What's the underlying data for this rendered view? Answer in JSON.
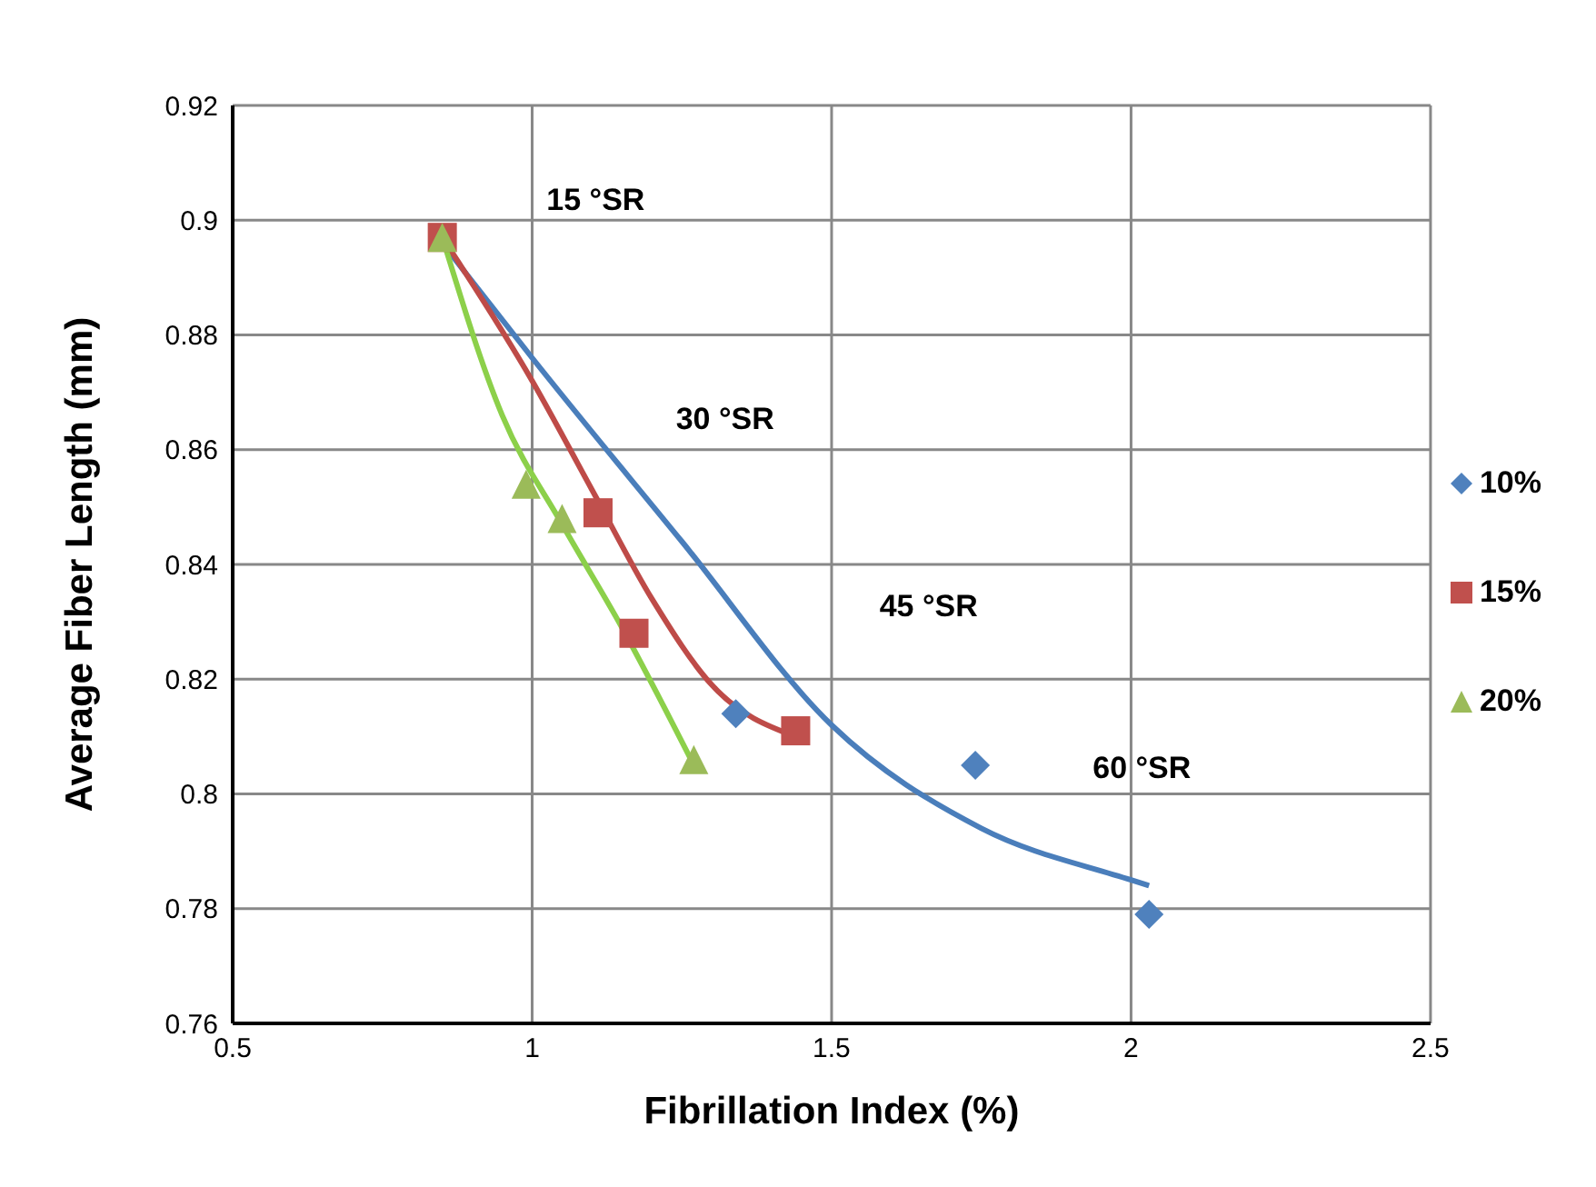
{
  "chart_data": {
    "type": "scatter",
    "xlabel": "Fibrillation Index (%)",
    "ylabel": "Average Fiber Length (mm)",
    "xlim": [
      0.5,
      2.5
    ],
    "xticks": [
      0.5,
      1,
      1.5,
      2,
      2.5
    ],
    "ylim": [
      0.76,
      0.92
    ],
    "yticks": [
      0.76,
      0.78,
      0.8,
      0.82,
      0.84,
      0.86,
      0.88,
      0.9,
      0.92
    ],
    "grid": true,
    "legend": "right",
    "series": [
      {
        "name": "10%",
        "color": "#4f81bd",
        "marker": "diamond",
        "x": [
          1.34,
          1.74,
          2.03
        ],
        "values": [
          0.814,
          0.805,
          0.779
        ]
      },
      {
        "name": "15%",
        "color": "#c0504d",
        "marker": "square",
        "x": [
          0.85,
          1.11,
          1.17,
          1.44
        ],
        "values": [
          0.897,
          0.849,
          0.828,
          0.811
        ]
      },
      {
        "name": "20%",
        "color": "#9bbb59",
        "marker": "triangle",
        "x": [
          0.85,
          0.99,
          1.05,
          1.27
        ],
        "values": [
          0.897,
          0.854,
          0.848,
          0.806
        ]
      },
      {
        "type": "line",
        "color": "#4a7ebb",
        "marker": "none",
        "x": [
          0.85,
          1.0,
          1.25,
          1.5,
          1.75,
          2.0,
          2.03
        ],
        "values": [
          0.896,
          0.876,
          0.844,
          0.812,
          0.794,
          0.785,
          0.784
        ]
      },
      {
        "type": "line",
        "color": "#be4b48",
        "marker": "none",
        "x": [
          0.85,
          1.0,
          1.1,
          1.2,
          1.3,
          1.44
        ],
        "values": [
          0.897,
          0.872,
          0.853,
          0.834,
          0.819,
          0.81
        ]
      },
      {
        "type": "line",
        "color": "#8cd04a",
        "marker": "none",
        "x": [
          0.85,
          0.95,
          1.05,
          1.15,
          1.27
        ],
        "values": [
          0.897,
          0.866,
          0.847,
          0.829,
          0.805
        ]
      }
    ],
    "annotations": [
      "15 °SR",
      "30 °SR",
      "45 °SR",
      "60 °SR"
    ]
  }
}
